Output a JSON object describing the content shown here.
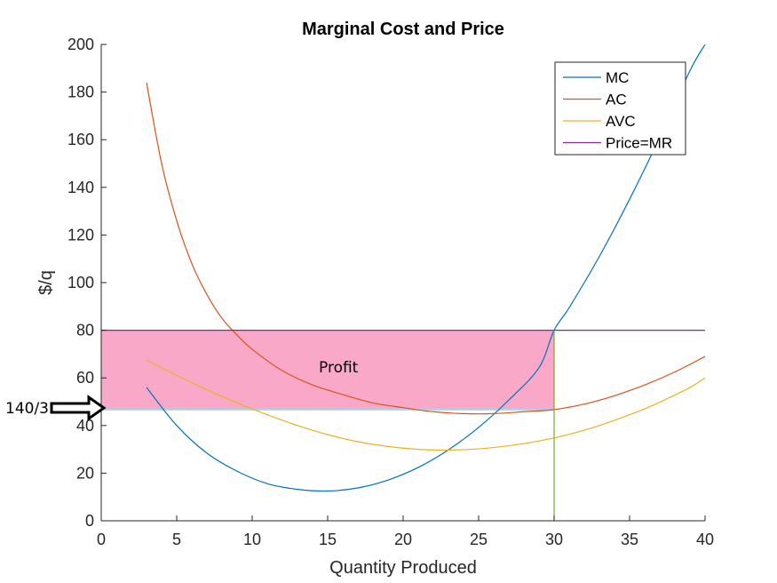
{
  "chart_data": {
    "type": "line",
    "title": "Marginal Cost and Price",
    "xlabel": "Quantity Produced",
    "ylabel": "$/q",
    "xlim": [
      0,
      40
    ],
    "ylim": [
      0,
      200
    ],
    "xticks": [
      "0",
      "5",
      "10",
      "15",
      "20",
      "25",
      "30",
      "35",
      "40"
    ],
    "yticks": [
      "0",
      "20",
      "40",
      "60",
      "80",
      "100",
      "120",
      "140",
      "160",
      "180",
      "200"
    ],
    "grid": false,
    "legend_position": "top-right",
    "series": [
      {
        "name": "MC",
        "color": "#0072BD",
        "x": [
          3,
          5,
          7,
          9,
          11,
          13,
          15,
          17,
          19,
          21,
          23,
          25,
          27,
          29,
          30,
          31,
          33,
          35,
          37,
          39,
          40
        ],
        "y": [
          56,
          40,
          28.4,
          20.8,
          15.6,
          13.2,
          12.5,
          13.8,
          17.1,
          22.4,
          29.8,
          39.2,
          50.7,
          64.3,
          80,
          89.5,
          111,
          135,
          161,
          189,
          200
        ]
      },
      {
        "name": "AC",
        "color": "#D95319",
        "x": [
          3,
          4,
          5,
          6,
          7,
          8,
          9,
          10,
          12,
          14,
          16,
          18,
          20,
          22,
          24,
          26,
          28,
          30,
          32,
          34,
          36,
          38,
          40
        ],
        "y": [
          184,
          150,
          126,
          108,
          95,
          85,
          78,
          72,
          63,
          57,
          53,
          49.5,
          47.5,
          45.8,
          45,
          45,
          45.8,
          46.7,
          49,
          52.5,
          57,
          62.5,
          69
        ]
      },
      {
        "name": "AVC",
        "color": "#EDB120",
        "x": [
          3,
          5,
          7,
          9,
          11,
          13,
          15,
          17,
          19,
          21,
          23,
          25,
          27,
          29,
          31,
          33,
          35,
          37,
          39,
          40
        ],
        "y": [
          67.5,
          61,
          55,
          49.5,
          44.5,
          40,
          36.2,
          33.2,
          31.2,
          30,
          29.7,
          30.2,
          31.5,
          33.5,
          36.3,
          40,
          44.5,
          49.8,
          56,
          60
        ]
      },
      {
        "name": "Price=MR",
        "color": "#7E2F8E",
        "x": [
          0,
          40
        ],
        "y": [
          80,
          80
        ]
      }
    ],
    "vertical_line": {
      "x": 30,
      "y": [
        0,
        80
      ],
      "color": "#77AC30"
    },
    "profit_region": {
      "x": [
        0,
        30
      ],
      "y": [
        46.6667,
        80
      ],
      "color": "#F9A8C8"
    },
    "annotations": {
      "profit_label": "Profit",
      "price_marker": "140/3"
    }
  }
}
